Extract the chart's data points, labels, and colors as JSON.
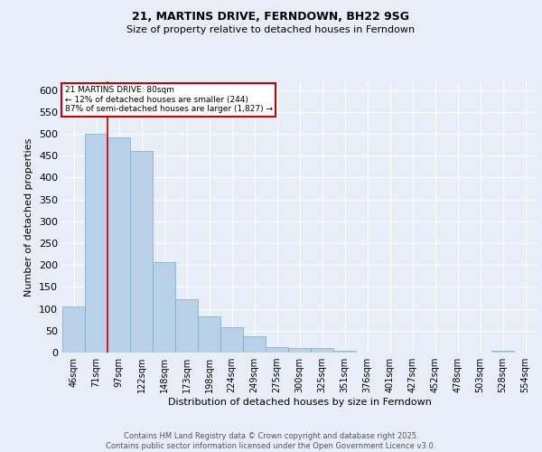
{
  "title1": "21, MARTINS DRIVE, FERNDOWN, BH22 9SG",
  "title2": "Size of property relative to detached houses in Ferndown",
  "xlabel": "Distribution of detached houses by size in Ferndown",
  "ylabel": "Number of detached properties",
  "categories": [
    "46sqm",
    "71sqm",
    "97sqm",
    "122sqm",
    "148sqm",
    "173sqm",
    "198sqm",
    "224sqm",
    "249sqm",
    "275sqm",
    "300sqm",
    "325sqm",
    "351sqm",
    "376sqm",
    "401sqm",
    "427sqm",
    "452sqm",
    "478sqm",
    "503sqm",
    "528sqm",
    "554sqm"
  ],
  "values": [
    105,
    500,
    492,
    460,
    207,
    122,
    82,
    58,
    38,
    13,
    10,
    10,
    4,
    0,
    0,
    0,
    0,
    0,
    0,
    5,
    0
  ],
  "bar_color": "#b8d0e8",
  "bar_edge_color": "#7aaac8",
  "vline_color": "#cc0000",
  "vline_x": 1.5,
  "annotation_text": "21 MARTINS DRIVE: 80sqm\n← 12% of detached houses are smaller (244)\n87% of semi-detached houses are larger (1,827) →",
  "annotation_box_edgecolor": "#cc0000",
  "ylim_max": 620,
  "yticks": [
    0,
    50,
    100,
    150,
    200,
    250,
    300,
    350,
    400,
    450,
    500,
    550,
    600
  ],
  "bg_color": "#e8eef8",
  "grid_color": "#ffffff",
  "footer_line1": "Contains HM Land Registry data © Crown copyright and database right 2025.",
  "footer_line2": "Contains public sector information licensed under the Open Government Licence v3.0.",
  "title1_fontsize": 9,
  "title2_fontsize": 8,
  "xlabel_fontsize": 8,
  "ylabel_fontsize": 8,
  "tick_fontsize": 7,
  "footer_fontsize": 6
}
